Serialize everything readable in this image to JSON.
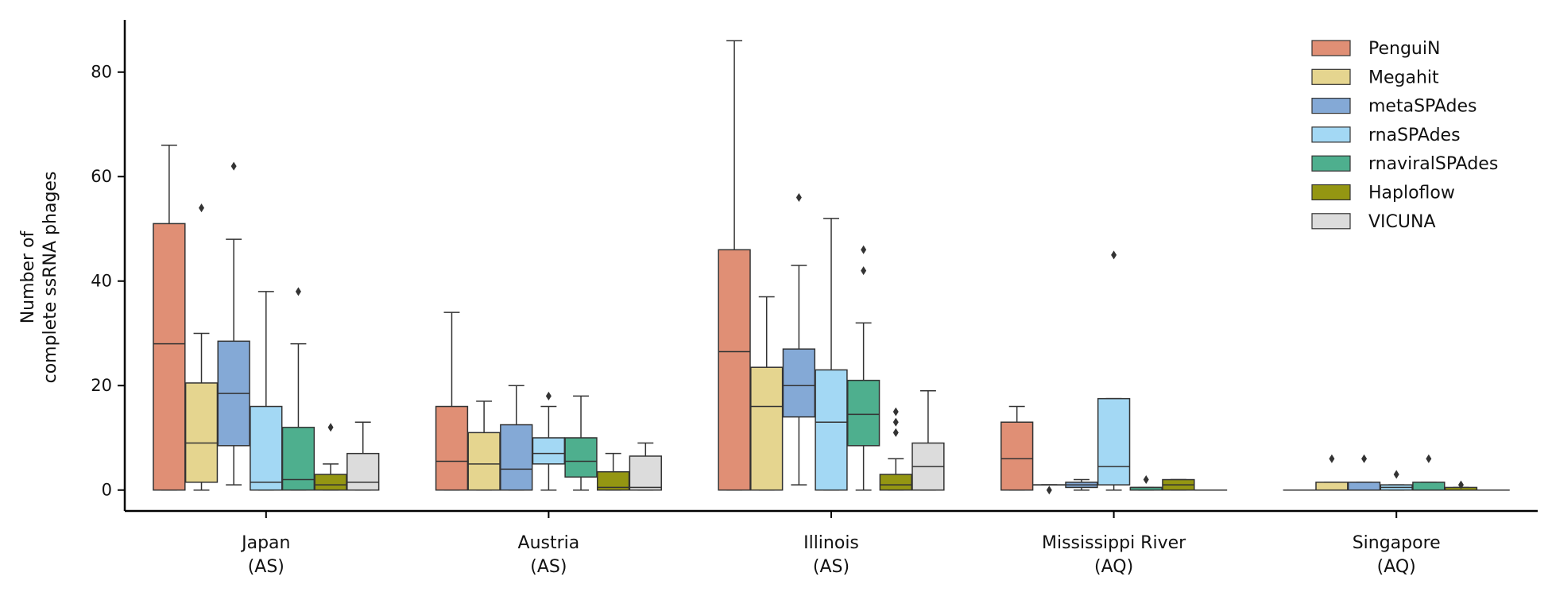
{
  "chart_data": {
    "type": "box",
    "title": "",
    "xlabel": "",
    "ylabel_lines": [
      "Number of",
      "complete ssRNA phages"
    ],
    "ylim": [
      -4,
      90
    ],
    "yticks": [
      0,
      20,
      40,
      60,
      80
    ],
    "grid": false,
    "legend_position": "top-right",
    "categories": [
      {
        "name": "Japan",
        "sub": "(AS)"
      },
      {
        "name": "Austria",
        "sub": "(AS)"
      },
      {
        "name": "Illinois",
        "sub": "(AS)"
      },
      {
        "name": "Mississippi River",
        "sub": "(AQ)"
      },
      {
        "name": "Singapore",
        "sub": "(AQ)"
      }
    ],
    "series": [
      {
        "name": "PenguiN",
        "color": "#e08f75",
        "boxes": [
          {
            "whislo": 0,
            "q1": 0,
            "med": 28,
            "q3": 51,
            "whishi": 66,
            "fliers": []
          },
          {
            "whislo": 0,
            "q1": 0,
            "med": 5.5,
            "q3": 16,
            "whishi": 34,
            "fliers": []
          },
          {
            "whislo": 0,
            "q1": 0,
            "med": 26.5,
            "q3": 46,
            "whishi": 86,
            "fliers": []
          },
          {
            "whislo": 0,
            "q1": 0,
            "med": 6,
            "q3": 13,
            "whishi": 16,
            "fliers": []
          },
          {
            "whislo": 0,
            "q1": 0,
            "med": 0,
            "q3": 0,
            "whishi": 0,
            "fliers": []
          }
        ]
      },
      {
        "name": "Megahit",
        "color": "#e5d58f",
        "boxes": [
          {
            "whislo": 0,
            "q1": 1.5,
            "med": 9,
            "q3": 20.5,
            "whishi": 30,
            "fliers": [
              54
            ]
          },
          {
            "whislo": 0,
            "q1": 0,
            "med": 5,
            "q3": 11,
            "whishi": 17,
            "fliers": []
          },
          {
            "whislo": 0,
            "q1": 0,
            "med": 16,
            "q3": 23.5,
            "whishi": 37,
            "fliers": []
          },
          {
            "whislo": 1,
            "q1": 1,
            "med": 1,
            "q3": 1,
            "whishi": 1,
            "fliers": [
              0
            ]
          },
          {
            "whislo": 0,
            "q1": 0,
            "med": 0,
            "q3": 1.5,
            "whishi": 1.5,
            "fliers": [
              6
            ]
          }
        ]
      },
      {
        "name": "metaSPAdes",
        "color": "#84a9d6",
        "boxes": [
          {
            "whislo": 1,
            "q1": 8.5,
            "med": 18.5,
            "q3": 28.5,
            "whishi": 48,
            "fliers": [
              62
            ]
          },
          {
            "whislo": 0,
            "q1": 0,
            "med": 4,
            "q3": 12.5,
            "whishi": 20,
            "fliers": []
          },
          {
            "whislo": 1,
            "q1": 14,
            "med": 20,
            "q3": 27,
            "whishi": 43,
            "fliers": [
              56
            ]
          },
          {
            "whislo": 0,
            "q1": 0.5,
            "med": 1,
            "q3": 1.5,
            "whishi": 2,
            "fliers": []
          },
          {
            "whislo": 0,
            "q1": 0,
            "med": 0,
            "q3": 1.5,
            "whishi": 1.5,
            "fliers": [
              6
            ]
          }
        ]
      },
      {
        "name": "rnaSPAdes",
        "color": "#a3d8f4",
        "boxes": [
          {
            "whislo": 0,
            "q1": 0,
            "med": 1.5,
            "q3": 16,
            "whishi": 38,
            "fliers": []
          },
          {
            "whislo": 0,
            "q1": 5,
            "med": 7,
            "q3": 10,
            "whishi": 16,
            "fliers": [
              18
            ]
          },
          {
            "whislo": 0,
            "q1": 0,
            "med": 13,
            "q3": 23,
            "whishi": 52,
            "fliers": []
          },
          {
            "whislo": 0,
            "q1": 1,
            "med": 4.5,
            "q3": 17.5,
            "whishi": 17.5,
            "fliers": [
              45
            ]
          },
          {
            "whislo": 0,
            "q1": 0,
            "med": 0.5,
            "q3": 1,
            "whishi": 1,
            "fliers": [
              3
            ]
          }
        ]
      },
      {
        "name": "rnaviralSPAdes",
        "color": "#4eaf8e",
        "boxes": [
          {
            "whislo": 0,
            "q1": 0,
            "med": 2,
            "q3": 12,
            "whishi": 28,
            "fliers": [
              38
            ]
          },
          {
            "whislo": 0,
            "q1": 2.5,
            "med": 5.5,
            "q3": 10,
            "whishi": 18,
            "fliers": []
          },
          {
            "whislo": 0,
            "q1": 8.5,
            "med": 14.5,
            "q3": 21,
            "whishi": 32,
            "fliers": [
              46,
              42
            ]
          },
          {
            "whislo": 0,
            "q1": 0,
            "med": 0.5,
            "q3": 0.5,
            "whishi": 0.5,
            "fliers": [
              2
            ]
          },
          {
            "whislo": 0,
            "q1": 0,
            "med": 0,
            "q3": 1.5,
            "whishi": 1.5,
            "fliers": [
              6
            ]
          }
        ]
      },
      {
        "name": "Haploflow",
        "color": "#949612",
        "boxes": [
          {
            "whislo": 0,
            "q1": 0,
            "med": 1,
            "q3": 3,
            "whishi": 5,
            "fliers": [
              12
            ]
          },
          {
            "whislo": 0,
            "q1": 0,
            "med": 0.5,
            "q3": 3.5,
            "whishi": 7,
            "fliers": []
          },
          {
            "whislo": 0,
            "q1": 0,
            "med": 1,
            "q3": 3,
            "whishi": 6,
            "fliers": [
              15,
              13,
              11
            ]
          },
          {
            "whislo": 0,
            "q1": 0,
            "med": 1,
            "q3": 2,
            "whishi": 2,
            "fliers": []
          },
          {
            "whislo": 0,
            "q1": 0,
            "med": 0,
            "q3": 0.5,
            "whishi": 0.5,
            "fliers": [
              1
            ]
          }
        ]
      },
      {
        "name": "VICUNA",
        "color": "#dcdcdc",
        "boxes": [
          {
            "whislo": 0,
            "q1": 0,
            "med": 1.5,
            "q3": 7,
            "whishi": 13,
            "fliers": []
          },
          {
            "whislo": 0,
            "q1": 0,
            "med": 0.5,
            "q3": 6.5,
            "whishi": 9,
            "fliers": []
          },
          {
            "whislo": 0,
            "q1": 0,
            "med": 4.5,
            "q3": 9,
            "whishi": 19,
            "fliers": []
          },
          {
            "whislo": 0,
            "q1": 0,
            "med": 0,
            "q3": 0,
            "whishi": 0,
            "fliers": []
          },
          {
            "whislo": 0,
            "q1": 0,
            "med": 0,
            "q3": 0,
            "whishi": 0,
            "fliers": []
          }
        ]
      }
    ]
  }
}
